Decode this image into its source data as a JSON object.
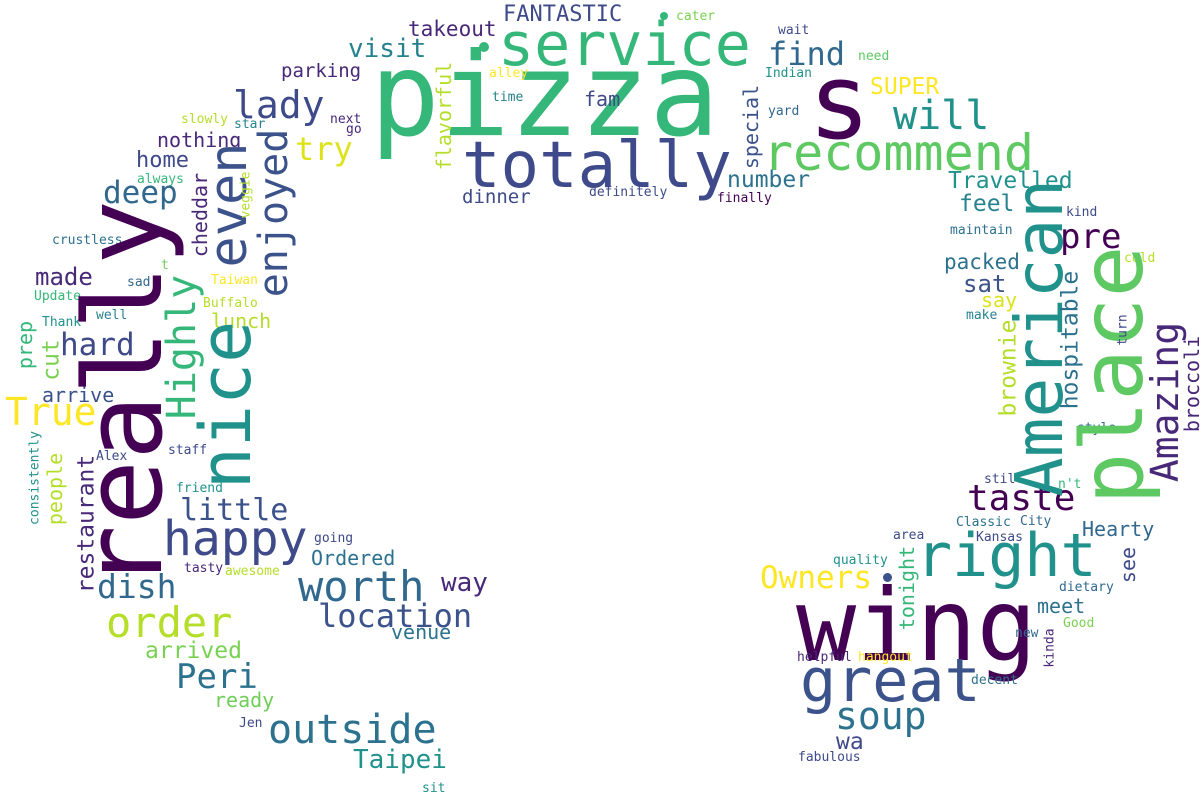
{
  "words": [
    {
      "text": "pizza",
      "color": "#35b779"
    },
    {
      "text": "s",
      "color": "#440154"
    },
    {
      "text": "service",
      "color": "#35b779"
    },
    {
      "text": "totally",
      "color": "#3e4a89"
    },
    {
      "text": "recommend",
      "color": "#5ec962"
    },
    {
      "text": "will",
      "color": "#21918c"
    },
    {
      "text": "find",
      "color": "#31688e"
    },
    {
      "text": "visit",
      "color": "#26828e"
    },
    {
      "text": "takeout",
      "color": "#482878"
    },
    {
      "text": "FANTASTIC",
      "color": "#3e4a89"
    },
    {
      "text": "cater",
      "color": "#7ad151"
    },
    {
      "text": "wait",
      "color": "#3e4a89"
    },
    {
      "text": "need",
      "color": "#5ec962"
    },
    {
      "text": "Indian",
      "color": "#21918c"
    },
    {
      "text": "yard",
      "color": "#31688e"
    },
    {
      "text": "alley",
      "color": "#fde725"
    },
    {
      "text": "time",
      "color": "#26828e"
    },
    {
      "text": "fam",
      "color": "#3e4a89"
    },
    {
      "text": "parking",
      "color": "#482878"
    },
    {
      "text": "lady",
      "color": "#3e4a89"
    },
    {
      "text": "SUPER",
      "color": "#fde725"
    },
    {
      "text": "next",
      "color": "#482878"
    },
    {
      "text": "go",
      "color": "#482878"
    },
    {
      "text": "star",
      "color": "#26828e"
    },
    {
      "text": "slowly",
      "color": "#b5de2b"
    },
    {
      "text": "nothing",
      "color": "#482878"
    },
    {
      "text": "try",
      "color": "#dde318"
    },
    {
      "text": "home",
      "color": "#3e4a89"
    },
    {
      "text": "always",
      "color": "#35b779"
    },
    {
      "text": "deep",
      "color": "#31688e"
    },
    {
      "text": "number",
      "color": "#2c728e"
    },
    {
      "text": "dinner",
      "color": "#3e4a89"
    },
    {
      "text": "definitely",
      "color": "#3e4a89"
    },
    {
      "text": "finally",
      "color": "#440154"
    },
    {
      "text": "Travelled",
      "color": "#21918c"
    },
    {
      "text": "feel",
      "color": "#26828e"
    },
    {
      "text": "kind",
      "color": "#3e4a89"
    },
    {
      "text": "maintain",
      "color": "#2c728e"
    },
    {
      "text": "pre",
      "color": "#440154"
    },
    {
      "text": "crustless",
      "color": "#2c728e"
    },
    {
      "text": "made",
      "color": "#482878"
    },
    {
      "text": "t",
      "color": "#6ece58"
    },
    {
      "text": "sad",
      "color": "#31688e"
    },
    {
      "text": "Taiwan",
      "color": "#fde725"
    },
    {
      "text": "Update",
      "color": "#35b779"
    },
    {
      "text": "Buffalo",
      "color": "#b5de2b"
    },
    {
      "text": "well",
      "color": "#26828e"
    },
    {
      "text": "lunch",
      "color": "#b5de2b"
    },
    {
      "text": "Thank",
      "color": "#21918c"
    },
    {
      "text": "packed",
      "color": "#2c728e"
    },
    {
      "text": "sat",
      "color": "#3b528b"
    },
    {
      "text": "say",
      "color": "#dde318"
    },
    {
      "text": "make",
      "color": "#26828e"
    },
    {
      "text": "cold",
      "color": "#b5de2b"
    },
    {
      "text": "hard",
      "color": "#3e4a89"
    },
    {
      "text": "True",
      "color": "#fde725"
    },
    {
      "text": "arrive",
      "color": "#3b528b"
    },
    {
      "text": "staff",
      "color": "#3e4a89"
    },
    {
      "text": "Alex",
      "color": "#3e4a89"
    },
    {
      "text": "friend",
      "color": "#21918c"
    },
    {
      "text": "little",
      "color": "#3b528b"
    },
    {
      "text": "happy",
      "color": "#3e4a89"
    },
    {
      "text": "taste",
      "color": "#440154"
    },
    {
      "text": "style",
      "color": "#31688e"
    },
    {
      "text": "still",
      "color": "#3e4a89"
    },
    {
      "text": "n't",
      "color": "#35b779"
    },
    {
      "text": "Classic",
      "color": "#2c728e"
    },
    {
      "text": "City",
      "color": "#31688e"
    },
    {
      "text": "Kansas",
      "color": "#3e4a89"
    },
    {
      "text": "area",
      "color": "#3e4a89"
    },
    {
      "text": "Hearty",
      "color": "#31688e"
    },
    {
      "text": "right",
      "color": "#21918c"
    },
    {
      "text": "Ordered",
      "color": "#2c728e"
    },
    {
      "text": "going",
      "color": "#3e4a89"
    },
    {
      "text": "worth",
      "color": "#31688e"
    },
    {
      "text": "way",
      "color": "#482878"
    },
    {
      "text": "dish",
      "color": "#31688e"
    },
    {
      "text": "tasty",
      "color": "#482878"
    },
    {
      "text": "awesome",
      "color": "#b5de2b"
    },
    {
      "text": "Owners",
      "color": "#fde725"
    },
    {
      "text": "quality",
      "color": "#21918c"
    },
    {
      "text": "meet",
      "color": "#2c728e"
    },
    {
      "text": "dietary",
      "color": "#31688e"
    },
    {
      "text": "order",
      "color": "#b5de2b"
    },
    {
      "text": "location",
      "color": "#3b528b"
    },
    {
      "text": "venue",
      "color": "#2c728e"
    },
    {
      "text": "wing",
      "color": "#440154"
    },
    {
      "text": "new",
      "color": "#31688e"
    },
    {
      "text": "Good",
      "color": "#7ad151"
    },
    {
      "text": "arrived",
      "color": "#7ad151"
    },
    {
      "text": "Peri",
      "color": "#2c728e"
    },
    {
      "text": "great",
      "color": "#3b528b"
    },
    {
      "text": "helpful",
      "color": "#482878"
    },
    {
      "text": "hangout",
      "color": "#fde725"
    },
    {
      "text": "decent",
      "color": "#2c728e"
    },
    {
      "text": "ready",
      "color": "#6ece58"
    },
    {
      "text": "soup",
      "color": "#2c728e"
    },
    {
      "text": "Jen",
      "color": "#3e4a89"
    },
    {
      "text": "outside",
      "color": "#2c728e"
    },
    {
      "text": "wa",
      "color": "#3e4a89"
    },
    {
      "text": "fabulous",
      "color": "#3e4a89"
    },
    {
      "text": "Taipei",
      "color": "#21918c"
    },
    {
      "text": "sit",
      "color": "#21918c"
    },
    {
      "text": "really",
      "color": "#440154"
    },
    {
      "text": "nice",
      "color": "#21918c"
    },
    {
      "text": "even",
      "color": "#3b528b"
    },
    {
      "text": "enjoyed",
      "color": "#3b528b"
    },
    {
      "text": "Highly",
      "color": "#35b779"
    },
    {
      "text": "cheddar",
      "color": "#482878"
    },
    {
      "text": "veggie",
      "color": "#b5de2b"
    },
    {
      "text": "flavorful",
      "color": "#b5de2b"
    },
    {
      "text": "special",
      "color": "#3b528b"
    },
    {
      "text": "American",
      "color": "#21918c"
    },
    {
      "text": "place",
      "color": "#5ec962"
    },
    {
      "text": "Amazing",
      "color": "#482878"
    },
    {
      "text": "broccoli",
      "color": "#482878"
    },
    {
      "text": "hospitable",
      "color": "#2c728e"
    },
    {
      "text": "brownie",
      "color": "#b5de2b"
    },
    {
      "text": "turn",
      "color": "#3e4a89"
    },
    {
      "text": "see",
      "color": "#3e4a89"
    },
    {
      "text": "tonight",
      "color": "#35b779"
    },
    {
      "text": "kinda",
      "color": "#482878"
    },
    {
      "text": "restaurant",
      "color": "#482878"
    },
    {
      "text": "people",
      "color": "#b5de2b"
    },
    {
      "text": "cut",
      "color": "#7ad151"
    },
    {
      "text": "prep",
      "color": "#35b779"
    },
    {
      "text": "consistently",
      "color": "#21918c"
    }
  ]
}
